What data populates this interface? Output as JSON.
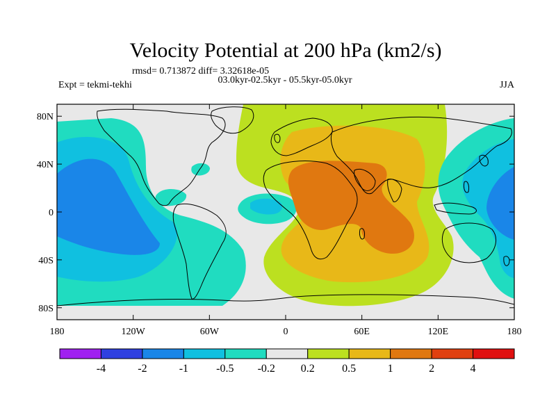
{
  "title": "Velocity Potential at 200 hPa (km2/s)",
  "stats_line": "rmsd= 0.713872 diff= 3.32618e-05",
  "experiment": "Expt = tekmi-tekhi",
  "period": "03.0kyr-02.5kyr - 05.5kyr-05.0kyr",
  "season": "JJA",
  "map": {
    "lon_range": [
      -180,
      180
    ],
    "lat_range": [
      -90,
      90
    ],
    "lon_ticks": [
      {
        "value": -180,
        "label": "180"
      },
      {
        "value": -120,
        "label": "120W"
      },
      {
        "value": -60,
        "label": "60W"
      },
      {
        "value": 0,
        "label": "0"
      },
      {
        "value": 60,
        "label": "60E"
      },
      {
        "value": 120,
        "label": "120E"
      },
      {
        "value": 180,
        "label": "180"
      }
    ],
    "lat_ticks": [
      {
        "value": 80,
        "label": "80N"
      },
      {
        "value": 40,
        "label": "40N"
      },
      {
        "value": 0,
        "label": "0"
      },
      {
        "value": -40,
        "label": "40S"
      },
      {
        "value": -80,
        "label": "80S"
      }
    ],
    "background_color": "#e8e8e8"
  },
  "colorbar": {
    "colors": [
      "#a020f0",
      "#3040e0",
      "#1a86e8",
      "#10c0e0",
      "#20dcc0",
      "#e8e8e8",
      "#bce020",
      "#e8b818",
      "#e07810",
      "#e04010",
      "#e01010"
    ],
    "labels": [
      "-4",
      "-2",
      "-1",
      "-0.5",
      "-0.2",
      "0.2",
      "0.5",
      "1",
      "2",
      "4"
    ]
  }
}
